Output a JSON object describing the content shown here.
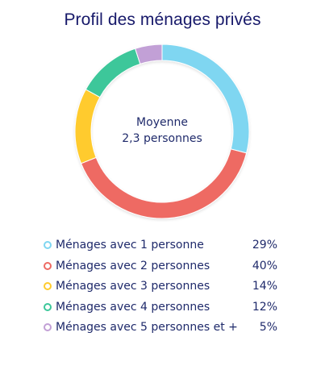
{
  "chart_data": {
    "type": "pie",
    "title": "Profil des ménages privés",
    "center_label": [
      "Moyenne",
      "2,3 personnes"
    ],
    "categories": [
      "Ménages avec 1 personne",
      "Ménages avec 2 personnes",
      "Ménages avec 3 personnes",
      "Ménages avec 4 personnes",
      "Ménages avec 5 personnes et +"
    ],
    "values": [
      29,
      40,
      14,
      12,
      5
    ],
    "value_labels": [
      "29%",
      "40%",
      "14%",
      "12%",
      "5%"
    ],
    "colors": [
      "#7fd6f1",
      "#ee6a63",
      "#ffcb2e",
      "#3cc79a",
      "#c2a0d6"
    ],
    "legend_position": "bottom",
    "donut": true
  }
}
